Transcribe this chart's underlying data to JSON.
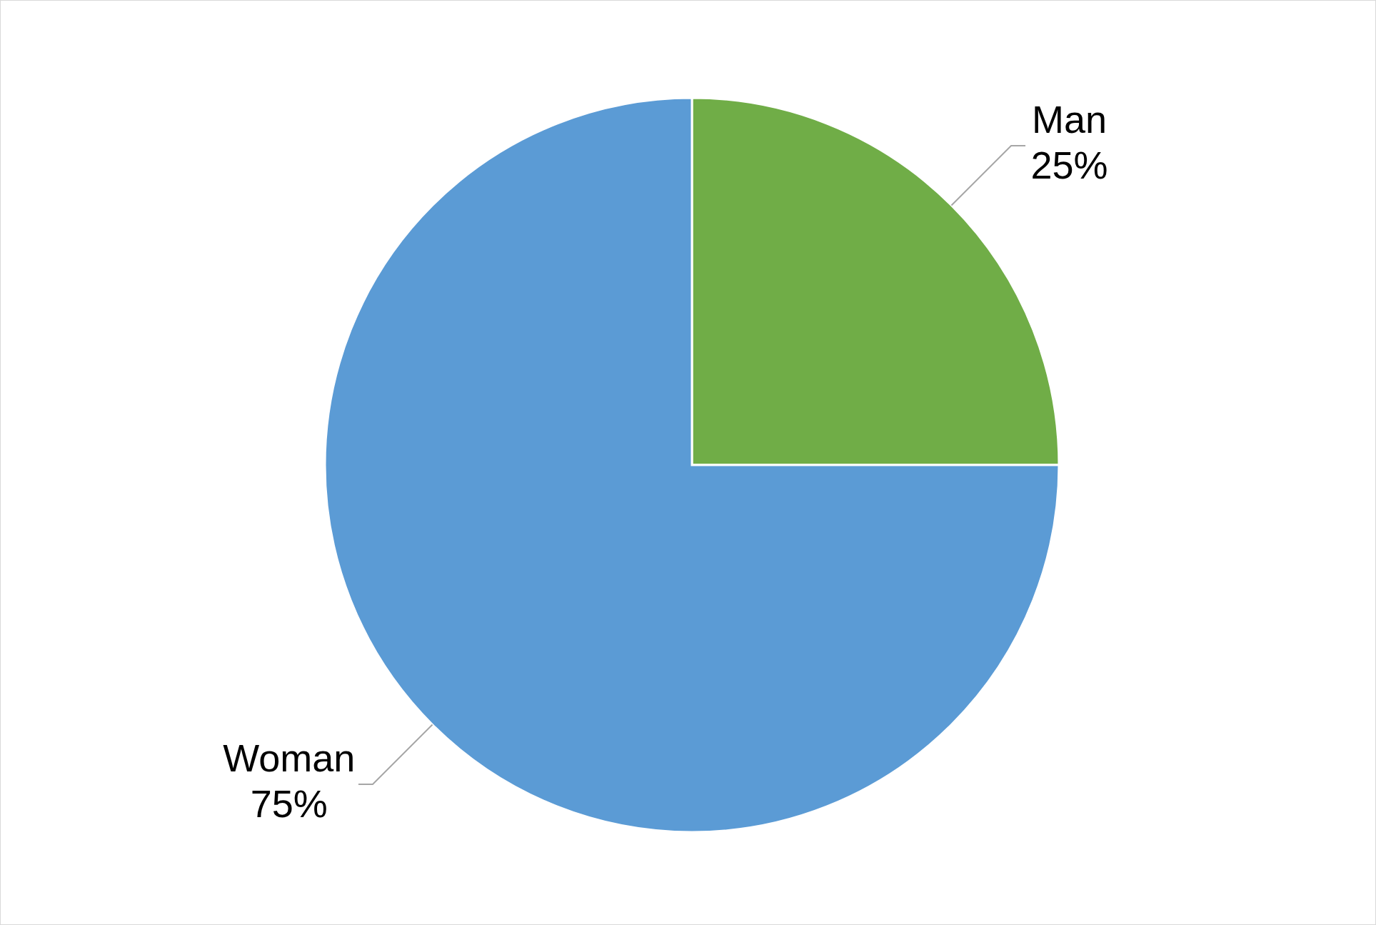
{
  "chart_data": {
    "type": "pie",
    "categories": [
      "Man",
      "Woman"
    ],
    "values": [
      25,
      75
    ],
    "value_labels": [
      "25%",
      "75%"
    ],
    "colors": [
      "#70ad47",
      "#5b9bd5"
    ],
    "legend": false
  }
}
